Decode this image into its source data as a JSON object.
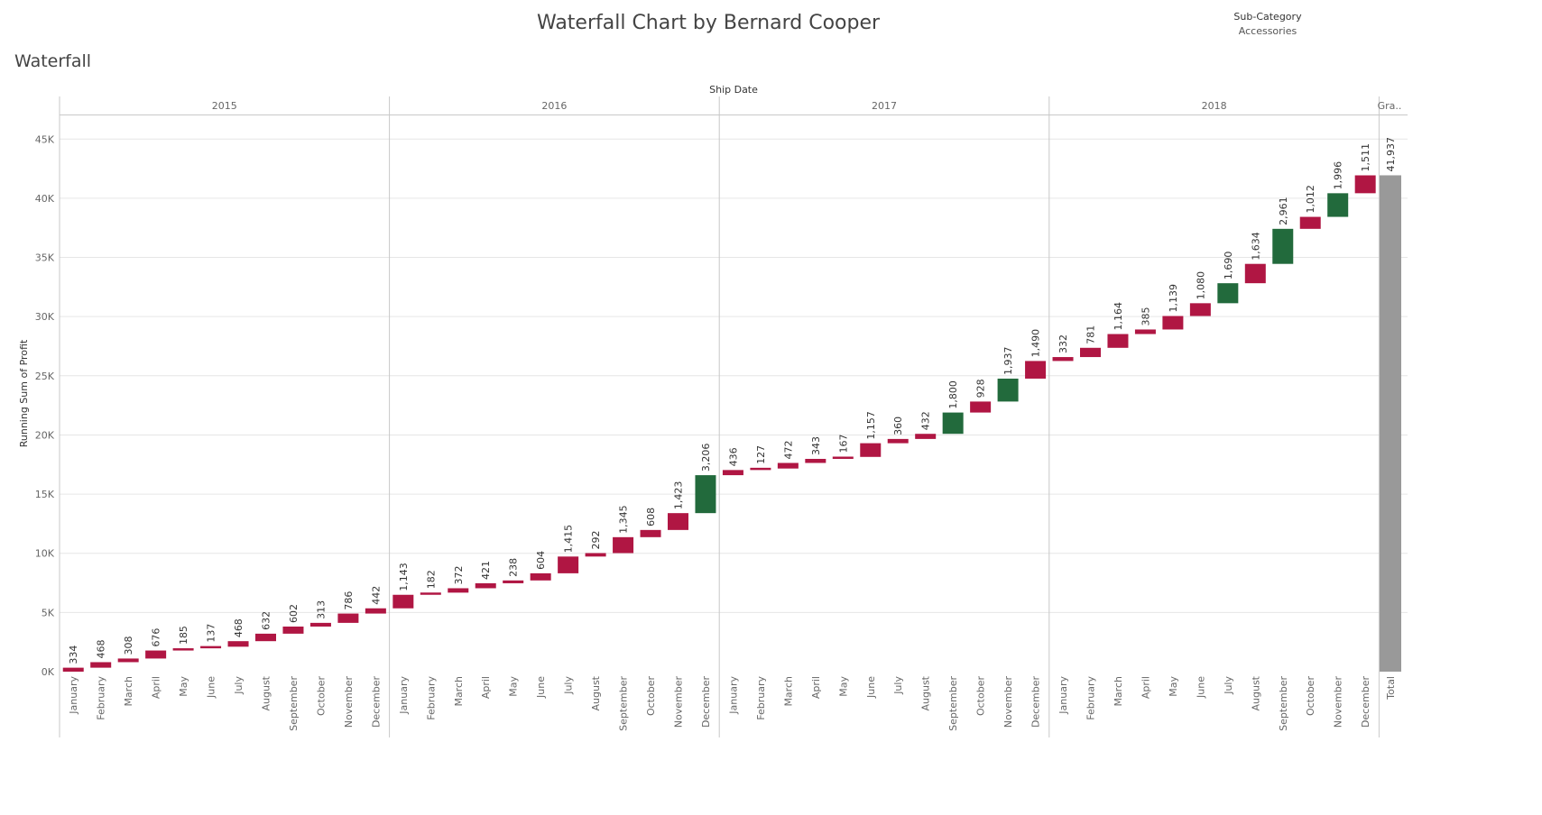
{
  "page": {
    "title": "Waterfall Chart by Bernard Cooper",
    "sheet_title": "Waterfall",
    "filter": {
      "label": "Sub-Category",
      "value": "Accessories"
    }
  },
  "colors": {
    "negative": "#b01643",
    "positive": "#226a3c",
    "total": "#999999",
    "grid": "#e6e6e6",
    "divider": "#c8c8c8"
  },
  "chart_data": {
    "type": "bar",
    "subtype": "waterfall",
    "title": "Waterfall Chart by Bernard Cooper",
    "column_header": "Ship Date",
    "ylabel": "Running Sum of Profit",
    "ylim": [
      0,
      47000
    ],
    "yticks": [
      0,
      5000,
      10000,
      15000,
      20000,
      25000,
      30000,
      35000,
      40000,
      45000
    ],
    "ytick_labels": [
      "0K",
      "5K",
      "10K",
      "15K",
      "20K",
      "25K",
      "30K",
      "35K",
      "40K",
      "45K"
    ],
    "grid": true,
    "years": [
      "2015",
      "2016",
      "2017",
      "2018"
    ],
    "months": [
      "January",
      "February",
      "March",
      "April",
      "May",
      "June",
      "July",
      "August",
      "September",
      "October",
      "November",
      "December"
    ],
    "values": [
      [
        334,
        468,
        308,
        676,
        185,
        137,
        468,
        632,
        602,
        313,
        786,
        442
      ],
      [
        1143,
        182,
        372,
        421,
        238,
        604,
        1415,
        292,
        1345,
        608,
        1423,
        3206
      ],
      [
        436,
        127,
        472,
        343,
        167,
        1157,
        360,
        432,
        1800,
        928,
        1937,
        1490
      ],
      [
        332,
        781,
        1164,
        385,
        1139,
        1080,
        1690,
        1634,
        2961,
        1012,
        1996,
        1511
      ]
    ],
    "labels": [
      [
        "334",
        "468",
        "308",
        "676",
        "185",
        "137",
        "468",
        "632",
        "602",
        "313",
        "786",
        "442"
      ],
      [
        "1,143",
        "182",
        "372",
        "421",
        "238",
        "604",
        "1,415",
        "292",
        "1,345",
        "608",
        "1,423",
        "3,206"
      ],
      [
        "436",
        "127",
        "472",
        "343",
        "167",
        "1,157",
        "360",
        "432",
        "1,800",
        "928",
        "1,937",
        "1,490"
      ],
      [
        "332",
        "781",
        "1,164",
        "385",
        "1,139",
        "1,080",
        "1,690",
        "1,634",
        "2,961",
        "1,012",
        "1,996",
        "1,511"
      ]
    ],
    "positive_months": [
      [],
      [
        "December"
      ],
      [
        "September",
        "November"
      ],
      [
        "July",
        "September",
        "November"
      ]
    ],
    "grand_total": {
      "header": "Gra..",
      "category": "Total",
      "value": 41937,
      "label": "41,937"
    }
  }
}
